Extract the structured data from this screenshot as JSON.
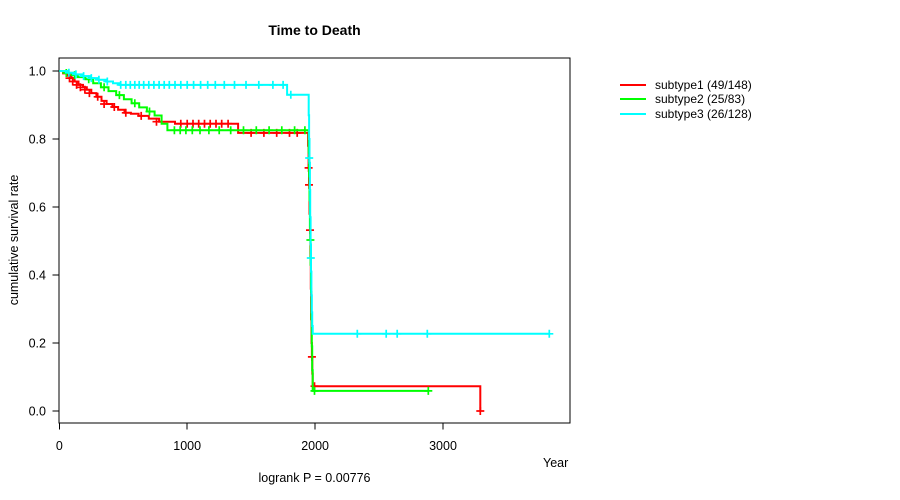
{
  "title": "Time to Death",
  "footnote": "logrank P = 0.00776",
  "axes": {
    "x": {
      "label": "Year",
      "tick_values": [
        0,
        1000,
        2000,
        3000
      ],
      "tick_labels": [
        "0",
        "1000",
        "2000",
        "3000"
      ],
      "range": [
        0,
        4000
      ]
    },
    "y": {
      "label": "cumulative survival rate",
      "tick_values": [
        1.0,
        0.8,
        0.6,
        0.4,
        0.2,
        0.0
      ],
      "tick_labels": [
        "1.0",
        "0.8",
        "0.6",
        "0.4",
        "0.2",
        "0.0"
      ],
      "range": [
        0,
        1
      ]
    }
  },
  "legend": [
    {
      "label": "subtype1 (49/148)",
      "color": "#ff0000"
    },
    {
      "label": "subtype2 (25/83)",
      "color": "#00ff00"
    },
    {
      "label": "subtype3 (26/128)",
      "color": "#00ffff"
    }
  ],
  "chart_data": {
    "type": "line",
    "subtype": "kaplan-meier-step",
    "title": "Time to Death",
    "xlabel": "Year",
    "ylabel": "cumulative survival rate",
    "xlim": [
      0,
      4000
    ],
    "ylim": [
      -0.035,
      1.038
    ],
    "grid": false,
    "legend_position": "right-outside",
    "annotation": "logrank P = 0.00776",
    "series": [
      {
        "name": "subtype1 (49/148)",
        "color": "#ff0000",
        "end_x": 3292,
        "steps": [
          [
            0,
            1.0
          ],
          [
            30,
            0.993
          ],
          [
            60,
            0.986
          ],
          [
            95,
            0.979
          ],
          [
            120,
            0.969
          ],
          [
            150,
            0.959
          ],
          [
            185,
            0.952
          ],
          [
            215,
            0.945
          ],
          [
            250,
            0.935
          ],
          [
            290,
            0.924
          ],
          [
            330,
            0.912
          ],
          [
            370,
            0.903
          ],
          [
            415,
            0.894
          ],
          [
            460,
            0.886
          ],
          [
            510,
            0.877
          ],
          [
            560,
            0.874
          ],
          [
            620,
            0.868
          ],
          [
            700,
            0.86
          ],
          [
            780,
            0.851
          ],
          [
            905,
            0.845
          ],
          [
            1398,
            0.818
          ],
          [
            1945,
            0.78
          ],
          [
            1949,
            0.715
          ],
          [
            1952,
            0.665
          ],
          [
            1956,
            0.58
          ],
          [
            1960,
            0.532
          ],
          [
            1963,
            0.45
          ],
          [
            1966,
            0.36
          ],
          [
            1969,
            0.27
          ],
          [
            1972,
            0.2
          ],
          [
            1975,
            0.159
          ],
          [
            1978,
            0.11
          ],
          [
            1981,
            0.073
          ],
          [
            3292,
            0.0
          ]
        ],
        "censors": [
          [
            80,
            0.979
          ],
          [
            105,
            0.969
          ],
          [
            135,
            0.959
          ],
          [
            165,
            0.952
          ],
          [
            200,
            0.945
          ],
          [
            235,
            0.935
          ],
          [
            300,
            0.924
          ],
          [
            350,
            0.903
          ],
          [
            430,
            0.894
          ],
          [
            520,
            0.877
          ],
          [
            640,
            0.868
          ],
          [
            760,
            0.851
          ],
          [
            950,
            0.845
          ],
          [
            1000,
            0.845
          ],
          [
            1045,
            0.845
          ],
          [
            1090,
            0.845
          ],
          [
            1135,
            0.845
          ],
          [
            1180,
            0.845
          ],
          [
            1225,
            0.845
          ],
          [
            1270,
            0.845
          ],
          [
            1320,
            0.845
          ],
          [
            1500,
            0.818
          ],
          [
            1600,
            0.818
          ],
          [
            1700,
            0.818
          ],
          [
            1800,
            0.818
          ],
          [
            1860,
            0.818
          ],
          [
            1949,
            0.715
          ],
          [
            1952,
            0.665
          ],
          [
            1960,
            0.532
          ],
          [
            1975,
            0.159
          ],
          [
            1995,
            0.073
          ],
          [
            3292,
            0.0
          ]
        ]
      },
      {
        "name": "subtype2 (25/83)",
        "color": "#00ff00",
        "end_x": 2885,
        "steps": [
          [
            0,
            1.0
          ],
          [
            45,
            0.994
          ],
          [
            95,
            0.988
          ],
          [
            145,
            0.982
          ],
          [
            205,
            0.976
          ],
          [
            265,
            0.964
          ],
          [
            325,
            0.952
          ],
          [
            385,
            0.941
          ],
          [
            445,
            0.929
          ],
          [
            505,
            0.917
          ],
          [
            565,
            0.905
          ],
          [
            625,
            0.893
          ],
          [
            685,
            0.881
          ],
          [
            745,
            0.869
          ],
          [
            800,
            0.845
          ],
          [
            845,
            0.826
          ],
          [
            1950,
            0.76
          ],
          [
            1953,
            0.69
          ],
          [
            1956,
            0.62
          ],
          [
            1959,
            0.54
          ],
          [
            1962,
            0.503
          ],
          [
            1965,
            0.43
          ],
          [
            1968,
            0.35
          ],
          [
            1971,
            0.27
          ],
          [
            1974,
            0.19
          ],
          [
            1977,
            0.12
          ],
          [
            1981,
            0.059
          ]
        ],
        "censors": [
          [
            55,
            0.994
          ],
          [
            120,
            0.988
          ],
          [
            230,
            0.976
          ],
          [
            350,
            0.952
          ],
          [
            470,
            0.929
          ],
          [
            590,
            0.905
          ],
          [
            705,
            0.881
          ],
          [
            900,
            0.826
          ],
          [
            945,
            0.826
          ],
          [
            990,
            0.826
          ],
          [
            1040,
            0.826
          ],
          [
            1100,
            0.826
          ],
          [
            1170,
            0.826
          ],
          [
            1250,
            0.826
          ],
          [
            1340,
            0.826
          ],
          [
            1440,
            0.826
          ],
          [
            1540,
            0.826
          ],
          [
            1640,
            0.826
          ],
          [
            1740,
            0.826
          ],
          [
            1840,
            0.826
          ],
          [
            1920,
            0.826
          ],
          [
            1963,
            0.503
          ],
          [
            1995,
            0.059
          ],
          [
            2885,
            0.059
          ]
        ]
      },
      {
        "name": "subtype3 (26/128)",
        "color": "#00ffff",
        "end_x": 3831,
        "steps": [
          [
            0,
            1.0
          ],
          [
            70,
            0.995
          ],
          [
            125,
            0.99
          ],
          [
            185,
            0.985
          ],
          [
            245,
            0.979
          ],
          [
            305,
            0.974
          ],
          [
            365,
            0.969
          ],
          [
            420,
            0.964
          ],
          [
            470,
            0.959
          ],
          [
            1781,
            0.93
          ],
          [
            1950,
            0.87
          ],
          [
            1953,
            0.8
          ],
          [
            1956,
            0.73
          ],
          [
            1959,
            0.65
          ],
          [
            1962,
            0.57
          ],
          [
            1965,
            0.49
          ],
          [
            1968,
            0.41
          ],
          [
            1971,
            0.34
          ],
          [
            1974,
            0.29
          ],
          [
            1977,
            0.25
          ],
          [
            1981,
            0.227
          ]
        ],
        "censors": [
          [
            75,
            0.995
          ],
          [
            130,
            0.99
          ],
          [
            190,
            0.985
          ],
          [
            250,
            0.979
          ],
          [
            310,
            0.974
          ],
          [
            375,
            0.969
          ],
          [
            480,
            0.959
          ],
          [
            520,
            0.959
          ],
          [
            555,
            0.959
          ],
          [
            590,
            0.959
          ],
          [
            625,
            0.959
          ],
          [
            660,
            0.959
          ],
          [
            700,
            0.959
          ],
          [
            740,
            0.959
          ],
          [
            780,
            0.959
          ],
          [
            820,
            0.959
          ],
          [
            860,
            0.959
          ],
          [
            905,
            0.959
          ],
          [
            950,
            0.959
          ],
          [
            1000,
            0.959
          ],
          [
            1050,
            0.959
          ],
          [
            1105,
            0.959
          ],
          [
            1160,
            0.959
          ],
          [
            1220,
            0.959
          ],
          [
            1290,
            0.959
          ],
          [
            1370,
            0.959
          ],
          [
            1460,
            0.959
          ],
          [
            1560,
            0.959
          ],
          [
            1670,
            0.959
          ],
          [
            1750,
            0.959
          ],
          [
            1810,
            0.93
          ],
          [
            1954,
            0.744
          ],
          [
            1966,
            0.45
          ],
          [
            2330,
            0.227
          ],
          [
            2556,
            0.227
          ],
          [
            2642,
            0.227
          ],
          [
            2877,
            0.227
          ],
          [
            3831,
            0.227
          ]
        ]
      }
    ]
  }
}
